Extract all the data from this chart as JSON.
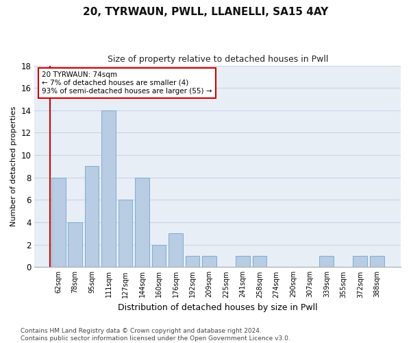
{
  "title": "20, TYRWAUN, PWLL, LLANELLI, SA15 4AY",
  "subtitle": "Size of property relative to detached houses in Pwll",
  "xlabel": "Distribution of detached houses by size in Pwll",
  "ylabel": "Number of detached properties",
  "categories": [
    "62sqm",
    "78sqm",
    "95sqm",
    "111sqm",
    "127sqm",
    "144sqm",
    "160sqm",
    "176sqm",
    "192sqm",
    "209sqm",
    "225sqm",
    "241sqm",
    "258sqm",
    "274sqm",
    "290sqm",
    "307sqm",
    "339sqm",
    "355sqm",
    "372sqm",
    "388sqm"
  ],
  "values": [
    8,
    4,
    9,
    14,
    6,
    8,
    2,
    3,
    1,
    1,
    0,
    1,
    1,
    0,
    0,
    0,
    1,
    0,
    1,
    1
  ],
  "bar_color": "#b8cce4",
  "bar_edge_color": "#7aadd4",
  "highlight_line_color": "#cc0000",
  "annotation_box_text": "20 TYRWAUN: 74sqm\n← 7% of detached houses are smaller (4)\n93% of semi-detached houses are larger (55) →",
  "annotation_box_edge_color": "#cc0000",
  "ylim": [
    0,
    18
  ],
  "yticks": [
    0,
    2,
    4,
    6,
    8,
    10,
    12,
    14,
    16,
    18
  ],
  "grid_color": "#c8d4e8",
  "background_color": "#e8eef6",
  "title_fontsize": 11,
  "subtitle_fontsize": 9,
  "ylabel_fontsize": 8,
  "xlabel_fontsize": 9,
  "annotation_fontsize": 7.5,
  "footer_fontsize": 6.5,
  "footer_text": "Contains HM Land Registry data © Crown copyright and database right 2024.\nContains public sector information licensed under the Open Government Licence v3.0."
}
